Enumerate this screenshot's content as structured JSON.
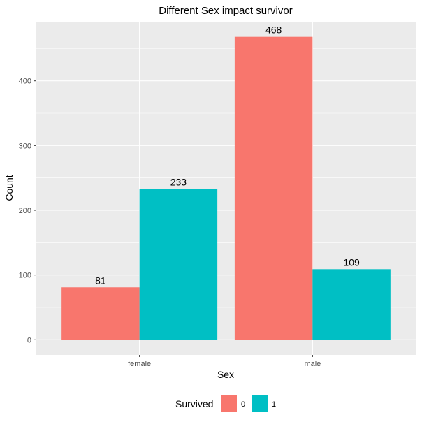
{
  "chart_data": {
    "type": "bar",
    "title": "Different Sex impact survivor",
    "xlabel": "Sex",
    "ylabel": "Count",
    "categories": [
      "female",
      "male"
    ],
    "series": [
      {
        "name": "0",
        "values": [
          81,
          468
        ],
        "color": "#F8766D"
      },
      {
        "name": "1",
        "values": [
          233,
          109
        ],
        "color": "#00BFC4"
      }
    ],
    "y_ticks": [
      0,
      100,
      200,
      300,
      400
    ],
    "ylim": [
      -23.4,
      491.4
    ],
    "grid": true,
    "panel_color": "#EBEBEB",
    "legend": {
      "title": "Survived",
      "position": "bottom"
    }
  }
}
